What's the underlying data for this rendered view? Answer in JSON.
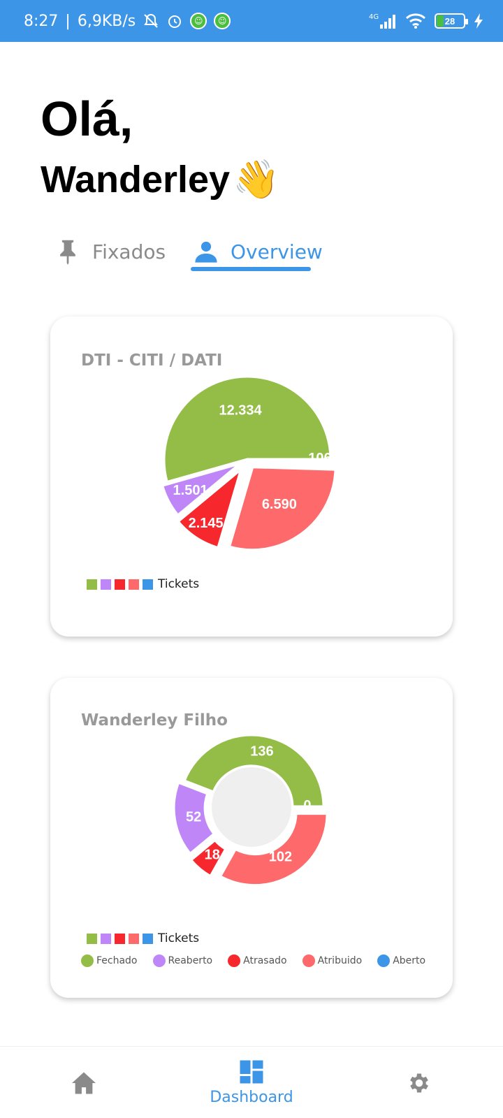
{
  "status_bar": {
    "time": "8:27",
    "network_speed": "6,9KB/s",
    "network_type": "4G",
    "battery": "28",
    "icons": [
      "bell-off-icon",
      "alarm-icon",
      "app-icon",
      "app-icon",
      "signal-icon",
      "wifi-icon",
      "battery-icon",
      "charging-icon"
    ]
  },
  "greeting": {
    "line1": "Olá,",
    "name": "Wanderley",
    "emoji": "👋"
  },
  "tabs": [
    {
      "label": "Fixados",
      "icon": "pin-icon",
      "active": false
    },
    {
      "label": "Overview",
      "icon": "person-icon",
      "active": true
    }
  ],
  "colors": {
    "primary": "#3d95e8",
    "fechado": "#93bd47",
    "reaberto": "#bf86f7",
    "atrasado": "#f7282d",
    "atribuido": "#fe6a6b",
    "aberto": "#3d95e8"
  },
  "cards": [
    {
      "title": "DTI - CITI / DATI",
      "legend_label": "Tickets"
    },
    {
      "title": "Wanderley Filho",
      "legend_label": "Tickets",
      "category_legend": [
        "Fechado",
        "Reaberto",
        "Atrasado",
        "Atribuido",
        "Aberto"
      ]
    }
  ],
  "chart_data": [
    {
      "type": "pie",
      "title": "DTI - CITI / DATI",
      "categories": [
        "Fechado",
        "Reaberto",
        "Atrasado",
        "Atribuido",
        "Aberto"
      ],
      "values": [
        12334,
        1501,
        2145,
        6590,
        106
      ],
      "labels": [
        "12.334",
        "1.501",
        "2.145",
        "6.590",
        "106"
      ],
      "legend": "Tickets"
    },
    {
      "type": "pie",
      "title": "Wanderley Filho",
      "categories": [
        "Fechado",
        "Reaberto",
        "Atrasado",
        "Atribuido",
        "Aberto"
      ],
      "values": [
        136,
        52,
        18,
        102,
        0
      ],
      "labels": [
        "136",
        "52",
        "18",
        "102",
        "0"
      ],
      "legend": "Tickets",
      "donut": true
    }
  ],
  "bottom_nav": {
    "items": [
      {
        "icon": "home-icon",
        "label": ""
      },
      {
        "icon": "dashboard-icon",
        "label": "Dashboard",
        "active": true
      },
      {
        "icon": "gear-icon",
        "label": ""
      }
    ]
  }
}
